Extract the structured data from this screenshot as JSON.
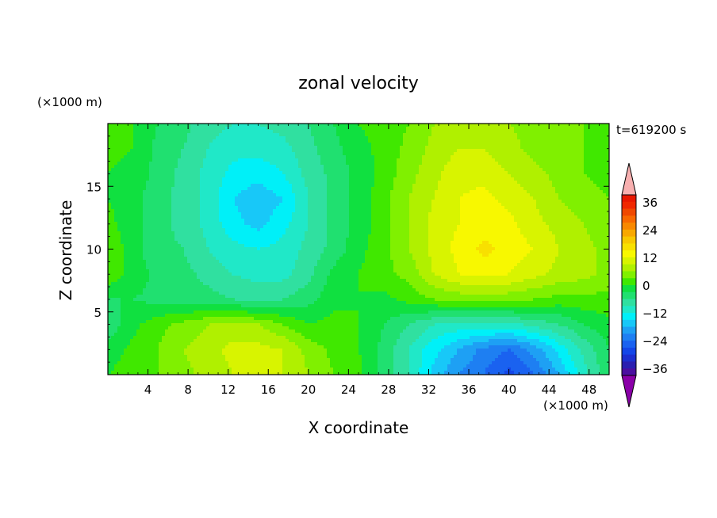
{
  "chart_data": {
    "type": "heatmap",
    "title": "zonal velocity",
    "xlabel": "X coordinate",
    "ylabel": "Z coordinate",
    "x_unit": "(×1000 m)",
    "y_unit": "(×1000 m)",
    "time_label": "t=619200 s",
    "xlim": [
      0,
      50
    ],
    "ylim": [
      0,
      20
    ],
    "x_ticks": [
      4,
      8,
      12,
      16,
      20,
      24,
      28,
      32,
      36,
      40,
      44,
      48
    ],
    "y_ticks": [
      5,
      10,
      15
    ],
    "colorbar": {
      "levels": [
        -42,
        -39,
        -36,
        -33,
        -30,
        -27,
        -24,
        -21,
        -18,
        -15,
        -12,
        -9,
        -6,
        -3,
        0,
        3,
        6,
        9,
        12,
        15,
        18,
        21,
        24,
        27,
        30,
        33,
        36,
        39,
        42
      ],
      "tick_labels": [
        "36",
        "24",
        "12",
        "0",
        "−12",
        "−24",
        "−36"
      ],
      "tick_values": [
        36,
        24,
        12,
        0,
        -12,
        -24,
        -36
      ],
      "colors": [
        "#8a00a8",
        "#4b0fa0",
        "#2a1fb0",
        "#1c2fd0",
        "#1446e8",
        "#1a62f0",
        "#1e7ff2",
        "#1ea0f4",
        "#18c8f8",
        "#00f0f8",
        "#20e8c8",
        "#30e0a0",
        "#20e070",
        "#10e040",
        "#40e800",
        "#80f000",
        "#b0f000",
        "#d8f400",
        "#f8f800",
        "#f8e000",
        "#f8c800",
        "#f8a800",
        "#f88800",
        "#f86800",
        "#f04800",
        "#f02800",
        "#e81800",
        "#f8b0b0"
      ]
    },
    "field_grid": {
      "description_of_rows": "rows from z=20 (top) to z=0 (bottom), columns from x=0 to x=50, values in m/s",
      "x": [
        0,
        2.5,
        5,
        7.5,
        10,
        12.5,
        15,
        17.5,
        20,
        22.5,
        25,
        27.5,
        30,
        32.5,
        35,
        37.5,
        40,
        42.5,
        45,
        47.5,
        50
      ],
      "z": [
        20,
        18,
        16,
        14,
        12,
        10,
        8,
        6,
        4,
        2,
        0
      ],
      "u": [
        [
          1,
          0,
          -3,
          -5,
          -8,
          -9,
          -9,
          -8,
          -6,
          -3,
          0,
          1,
          3,
          6,
          7,
          6,
          6,
          5,
          4,
          3,
          2
        ],
        [
          1,
          0,
          -4,
          -6,
          -9,
          -11,
          -11,
          -10,
          -7,
          -4,
          -1,
          1,
          4,
          7,
          9,
          9,
          7,
          5,
          4,
          3,
          2
        ],
        [
          0,
          -1,
          -4,
          -7,
          -10,
          -13,
          -14,
          -12,
          -8,
          -5,
          -2,
          1,
          5,
          8,
          11,
          11,
          9,
          7,
          5,
          3,
          2
        ],
        [
          0,
          -2,
          -5,
          -7,
          -10,
          -15,
          -17,
          -15,
          -9,
          -5,
          -2,
          2,
          6,
          9,
          12,
          13,
          11,
          9,
          6,
          4,
          3
        ],
        [
          1,
          -2,
          -5,
          -7,
          -10,
          -14,
          -16,
          -13,
          -9,
          -5,
          -2,
          2,
          6,
          10,
          12,
          13,
          13,
          10,
          8,
          6,
          4
        ],
        [
          3,
          -2,
          -5,
          -6,
          -9,
          -11,
          -12,
          -11,
          -8,
          -5,
          -1,
          2,
          6,
          10,
          13,
          16,
          14,
          12,
          9,
          7,
          5
        ],
        [
          2,
          -1,
          -4,
          -5,
          -7,
          -9,
          -10,
          -10,
          -7,
          -2,
          0,
          2,
          4,
          9,
          12,
          13,
          12,
          10,
          8,
          7,
          5
        ],
        [
          -3,
          -3,
          -4,
          -5,
          -5,
          -6,
          -7,
          -6,
          -4,
          -1,
          0,
          -1,
          1,
          3,
          4,
          4,
          4,
          3,
          2,
          2,
          2
        ],
        [
          -5,
          -1,
          2,
          4,
          6,
          7,
          6,
          3,
          0,
          1,
          0,
          -3,
          -6,
          -9,
          -10,
          -10,
          -10,
          -8,
          -6,
          -3,
          -1
        ],
        [
          -2,
          1,
          3,
          6,
          8,
          10,
          10,
          9,
          5,
          2,
          0,
          -4,
          -9,
          -14,
          -18,
          -22,
          -24,
          -20,
          -14,
          -8,
          -3
        ],
        [
          0,
          2,
          3,
          5,
          7,
          9,
          10,
          9,
          6,
          3,
          1,
          -4,
          -9,
          -16,
          -21,
          -24,
          -28,
          -24,
          -18,
          -10,
          -4
        ]
      ]
    }
  }
}
